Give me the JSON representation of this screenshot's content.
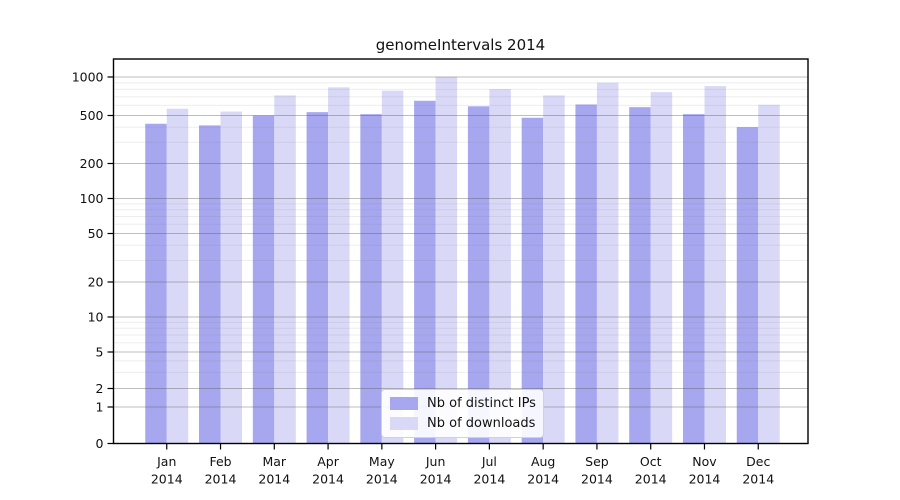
{
  "title": "genomeIntervals 2014",
  "chart_data": {
    "type": "bar",
    "title": "genomeIntervals 2014",
    "categories": [
      "Jan",
      "Feb",
      "Mar",
      "Apr",
      "May",
      "Jun",
      "Jul",
      "Aug",
      "Sep",
      "Oct",
      "Nov",
      "Dec"
    ],
    "year_label": "2014",
    "series": [
      {
        "name": "Nb of distinct IPs",
        "color": "#a7a7ef",
        "values": [
          427,
          414,
          500,
          531,
          512,
          652,
          590,
          479,
          610,
          581,
          512,
          401
        ]
      },
      {
        "name": "Nb of downloads",
        "color": "#d9d9f7",
        "values": [
          565,
          537,
          718,
          830,
          782,
          1005,
          805,
          718,
          903,
          762,
          849,
          607
        ]
      }
    ],
    "yscale": "symlog",
    "y_ticks": [
      0,
      1,
      2,
      5,
      10,
      20,
      50,
      100,
      200,
      500,
      1000
    ],
    "y_minor_ticks": [
      3,
      4,
      6,
      7,
      8,
      9,
      30,
      40,
      60,
      70,
      80,
      90,
      300,
      400,
      600,
      700,
      800,
      900
    ],
    "ylim": [
      0,
      1400
    ],
    "xlabel": "",
    "ylabel": "",
    "grid": true,
    "grid_on_top": true,
    "legend_position": "lower center",
    "colors": {
      "frame": "#000000",
      "text": "#111111",
      "major_grid": "#b3b3b3",
      "minor_grid": "#ebebeb",
      "background": "#ffffff"
    }
  }
}
